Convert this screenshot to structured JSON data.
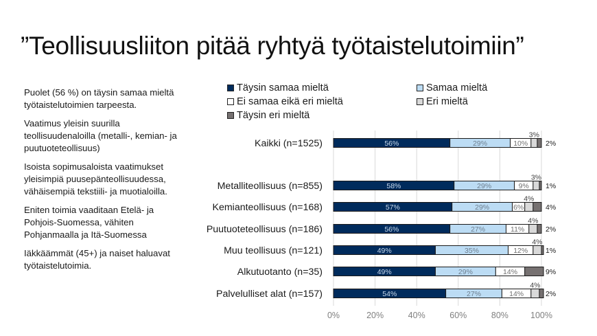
{
  "slide": {
    "title": "”Teollisuusliiton pitää ryhtyä työtaistelutoimiin”",
    "notes": [
      "Puolet (56 %) on täysin samaa mieltä työtaistelutoimien tarpeesta.",
      "Vaatimus yleisin suurilla teollisuudenaloilla (metalli-, kemian- ja puutuoteteollisuus)",
      "Isoista sopimusaloista vaatimukset yleisimpiä puusepänteollisuudessa, vähäisempiä tekstiili- ja muotialoilla.",
      "Eniten toimia vaaditaan Etelä- ja Pohjois-Suomessa, vähiten Pohjanmaalla ja Itä-Suomessa",
      "Iäkkäämmät (45+) ja naiset haluavat työtaistelutoimia."
    ]
  },
  "chart_data": {
    "type": "bar",
    "orientation": "horizontal",
    "stacked": true,
    "title": "",
    "xlabel": "",
    "ylabel": "",
    "xlim": [
      0,
      100
    ],
    "x_ticks": [
      "0%",
      "20%",
      "40%",
      "60%",
      "80%",
      "100%"
    ],
    "grid": true,
    "legend_position": "top",
    "categories": [
      "Kaikki (n=1525)",
      "Metalliteollisuus (n=855)",
      "Kemianteollisuus (n=168)",
      "Puutuoteteollisuus (n=186)",
      "Muu teollisuus (n=121)",
      "Alkutuotanto (n=35)",
      "Palvelulliset alat (n=157)"
    ],
    "series": [
      {
        "name": "Täysin samaa mieltä",
        "color": "#002b5c",
        "label_color": "#c9d9ec",
        "values": [
          56,
          58,
          57,
          56,
          49,
          49,
          54
        ]
      },
      {
        "name": "Samaa mieltä",
        "color": "#bcdcf4",
        "label_color": "#6e7f8f",
        "values": [
          29,
          29,
          29,
          27,
          35,
          29,
          27
        ]
      },
      {
        "name": "Ei samaa eikä eri mieltä",
        "color": "#ffffff",
        "label_color": "#707070",
        "values": [
          10,
          9,
          6,
          11,
          12,
          14,
          14
        ]
      },
      {
        "name": "Eri mieltä",
        "color": "#d9d9d9",
        "label_color": "#404040",
        "values": [
          3,
          3,
          4,
          4,
          4,
          0,
          4
        ]
      },
      {
        "name": "Täysin eri mieltä",
        "color": "#767171",
        "label_color": "#1a1a1a",
        "values": [
          2,
          1,
          4,
          2,
          1,
          9,
          2
        ]
      }
    ]
  }
}
